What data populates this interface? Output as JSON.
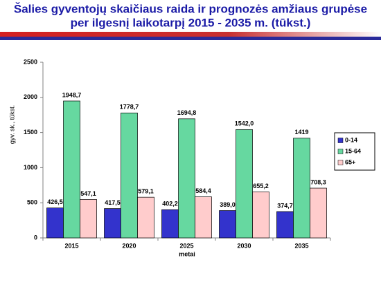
{
  "chart_data": {
    "type": "bar",
    "title": [
      "Šalies gyventojų skaičiaus raida ir prognozės amžiaus grupėse",
      "per ilgesnį laikotarpį 2015 - 2035 m. (tūkst.)"
    ],
    "x_label": "metai",
    "y_label": "gyv. sk., tūkst.",
    "categories": [
      "2015",
      "2020",
      "2025",
      "2030",
      "2035"
    ],
    "series": [
      {
        "name": "0-14",
        "color": "#3333cc",
        "values": [
          426.5,
          417.5,
          402.2,
          389.0,
          374.7
        ],
        "value_labels": [
          "426,5",
          "417,5",
          "402,2",
          "389,0",
          "374,7"
        ]
      },
      {
        "name": "15-64",
        "color": "#66d8a0",
        "values": [
          1948.7,
          1778.7,
          1694.8,
          1542.0,
          1419
        ],
        "value_labels": [
          "1948,7",
          "1778,7",
          "1694,8",
          "1542,0",
          "1419"
        ]
      },
      {
        "name": "65+",
        "color": "#ffcccc",
        "values": [
          547.1,
          579.1,
          584.4,
          655.2,
          708.3
        ],
        "value_labels": [
          "547,1",
          "579,1",
          "584,4",
          "655,2",
          "708,3"
        ]
      }
    ],
    "ylim": [
      0,
      2500
    ],
    "yticks": [
      0,
      500,
      1000,
      1500,
      2000,
      2500
    ],
    "grid": false,
    "legend": "right"
  }
}
